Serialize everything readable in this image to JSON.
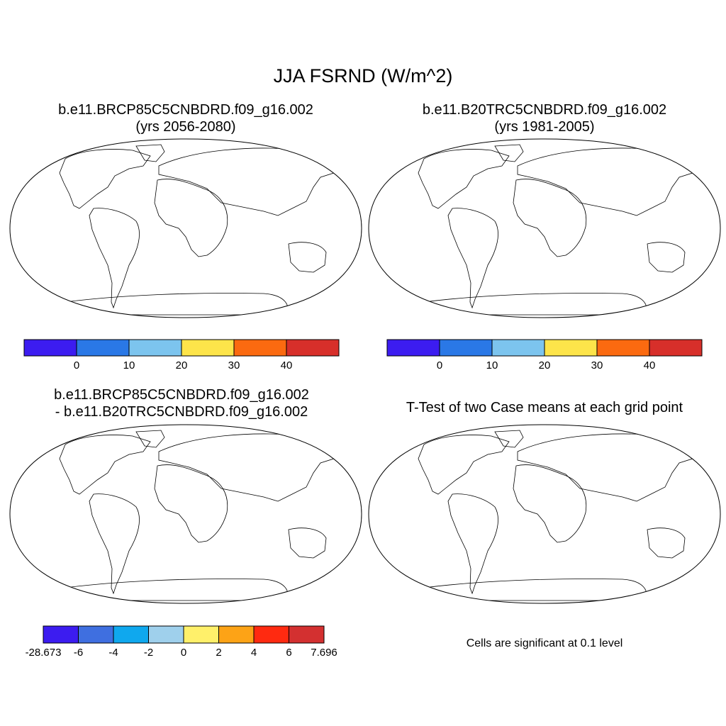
{
  "figure": {
    "title": "JJA FSRND (W/m^2)"
  },
  "panels": [
    {
      "title_line1": "b.e11.BRCP85C5CNBDRD.f09_g16.002",
      "title_line2": "(yrs 2056-2080)"
    },
    {
      "title_line1": "b.e11.B20TRC5CNBDRD.f09_g16.002",
      "title_line2": "(yrs 1981-2005)"
    },
    {
      "title_line1": "b.e11.BRCP85C5CNBDRD.f09_g16.002",
      "title_line2": "- b.e11.B20TRC5CNBDRD.f09_g16.002"
    },
    {
      "title_line1": "T-Test of two Case means at each grid point",
      "note": "Cells are significant at 0.1 level"
    }
  ],
  "colorbars": {
    "absolute": {
      "colors": [
        "#3c1cf0",
        "#2a78e6",
        "#7cc4ee",
        "#fde44a",
        "#fb6a10",
        "#d72f2a"
      ],
      "labels": [
        "0",
        "10",
        "20",
        "30",
        "40"
      ]
    },
    "difference": {
      "colors": [
        "#3c1cf0",
        "#3f6fe0",
        "#0fa8ee",
        "#9fd0ec",
        "#fff06a",
        "#fda316",
        "#ff2a10",
        "#d33030"
      ],
      "labels": [
        "-28.673",
        "-6",
        "-4",
        "-2",
        "0",
        "2",
        "4",
        "6",
        "7.696"
      ]
    }
  },
  "map_colors": {
    "ocean": "#ffffff",
    "antarctica_abs": "#2a78e6",
    "antarctica_diff": "#fde44a",
    "significant": "#ff0000"
  }
}
